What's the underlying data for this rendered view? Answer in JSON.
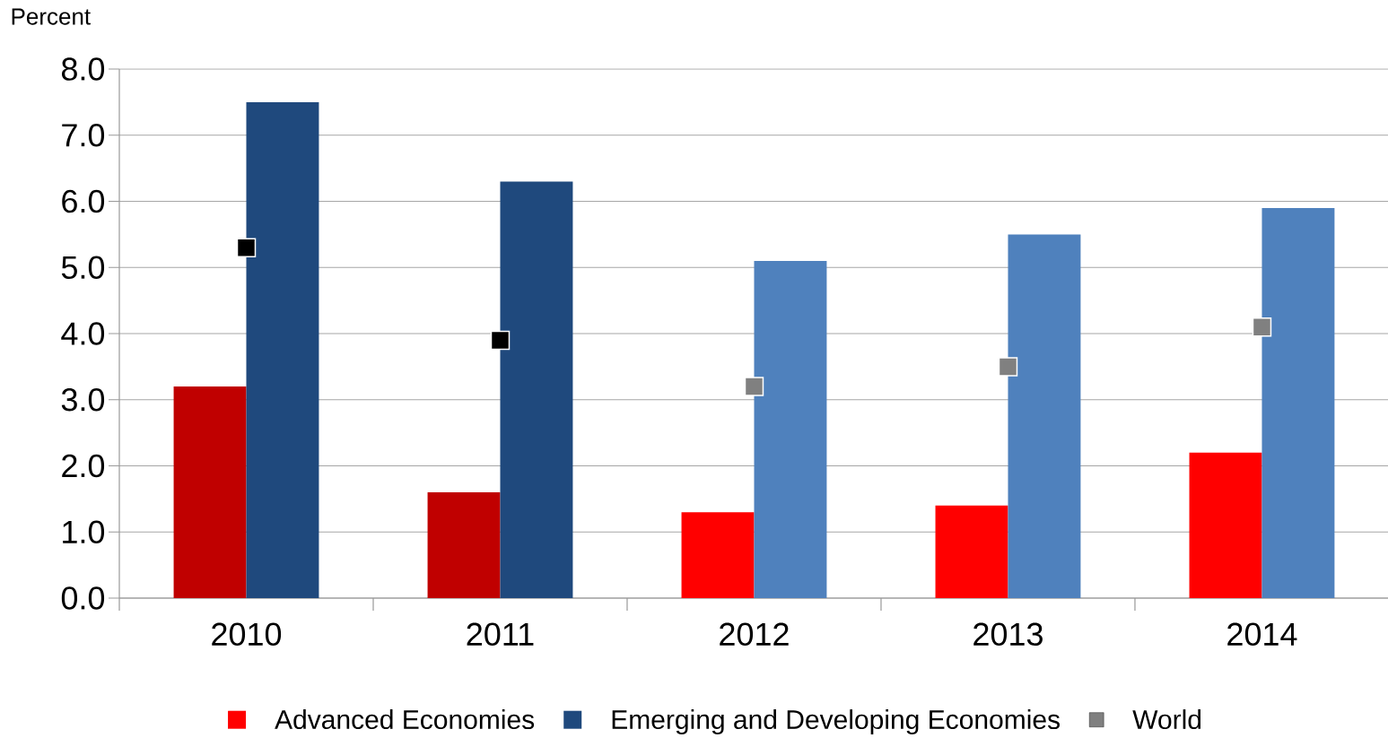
{
  "chart_data": {
    "type": "bar",
    "ylabel": "Percent",
    "categories": [
      "2010",
      "2011",
      "2012",
      "2013",
      "2014"
    ],
    "series": [
      {
        "name": "Advanced Economies",
        "color": "#ff0000",
        "colors": [
          "#c00000",
          "#c00000",
          "#ff0000",
          "#ff0000",
          "#ff0000"
        ],
        "values": [
          3.2,
          1.6,
          1.3,
          1.4,
          2.2
        ]
      },
      {
        "name": "Emerging and Developing Economies",
        "color": "#1f497d",
        "colors": [
          "#1f497d",
          "#1f497d",
          "#4f81bd",
          "#4f81bd",
          "#4f81bd"
        ],
        "values": [
          7.5,
          6.3,
          5.1,
          5.5,
          5.9
        ]
      },
      {
        "name": "World",
        "type": "scatter",
        "marker": "square",
        "color": "#808080",
        "colors": [
          "#000000",
          "#000000",
          "#808080",
          "#808080",
          "#808080"
        ],
        "values": [
          5.3,
          3.9,
          3.2,
          3.5,
          4.1
        ]
      }
    ],
    "ylim": [
      0,
      8
    ],
    "yticks": [
      {
        "value": 0,
        "label": "0.0"
      },
      {
        "value": 1,
        "label": "1.0"
      },
      {
        "value": 2,
        "label": "2.0"
      },
      {
        "value": 3,
        "label": "3.0"
      },
      {
        "value": 4,
        "label": "4.0"
      },
      {
        "value": 5,
        "label": "5.0"
      },
      {
        "value": 6,
        "label": "6.0"
      },
      {
        "value": 7,
        "label": "7.0"
      },
      {
        "value": 8,
        "label": "8.0"
      }
    ],
    "grid": "y",
    "legend": "bottom"
  }
}
